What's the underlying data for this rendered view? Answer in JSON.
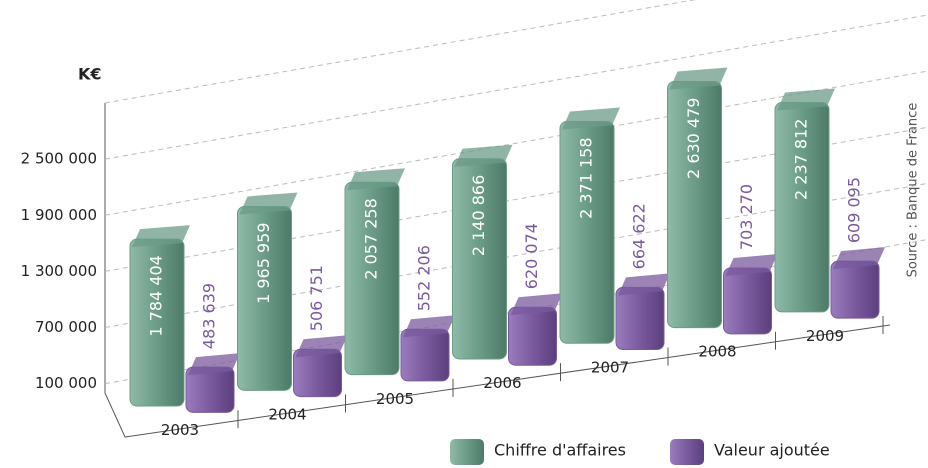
{
  "chart_data": {
    "type": "bar",
    "ylabel": "K€",
    "source": "Source : Banque de France",
    "categories": [
      "2003",
      "2004",
      "2005",
      "2006",
      "2007",
      "2008",
      "2009"
    ],
    "series": [
      {
        "name": "Chiffre d'affaires",
        "color": "#6b9c88",
        "values": [
          1784404,
          1965959,
          2057258,
          2140866,
          2371158,
          2630479,
          2237812
        ],
        "value_labels": [
          "1 784 404",
          "1 965 959",
          "2 057 258",
          "2 140 866",
          "2 371 158",
          "2 630 479",
          "2 237 812"
        ]
      },
      {
        "name": "Valeur ajoutée",
        "color": "#7a5a9e",
        "values": [
          483639,
          506751,
          552206,
          620074,
          664622,
          703270,
          609095
        ],
        "value_labels": [
          "483 639",
          "506 751",
          "552 206",
          "620 074",
          "664 622",
          "703 270",
          "609 095"
        ]
      }
    ],
    "ylim": [
      0,
      3100000
    ],
    "yticks": [
      {
        "value": 100000,
        "label": "100 000"
      },
      {
        "value": 700000,
        "label": "700 000"
      },
      {
        "value": 1300000,
        "label": "1 300 000"
      },
      {
        "value": 1900000,
        "label": "1 900 000"
      },
      {
        "value": 2500000,
        "label": "2 500 000"
      }
    ],
    "grid": true
  }
}
